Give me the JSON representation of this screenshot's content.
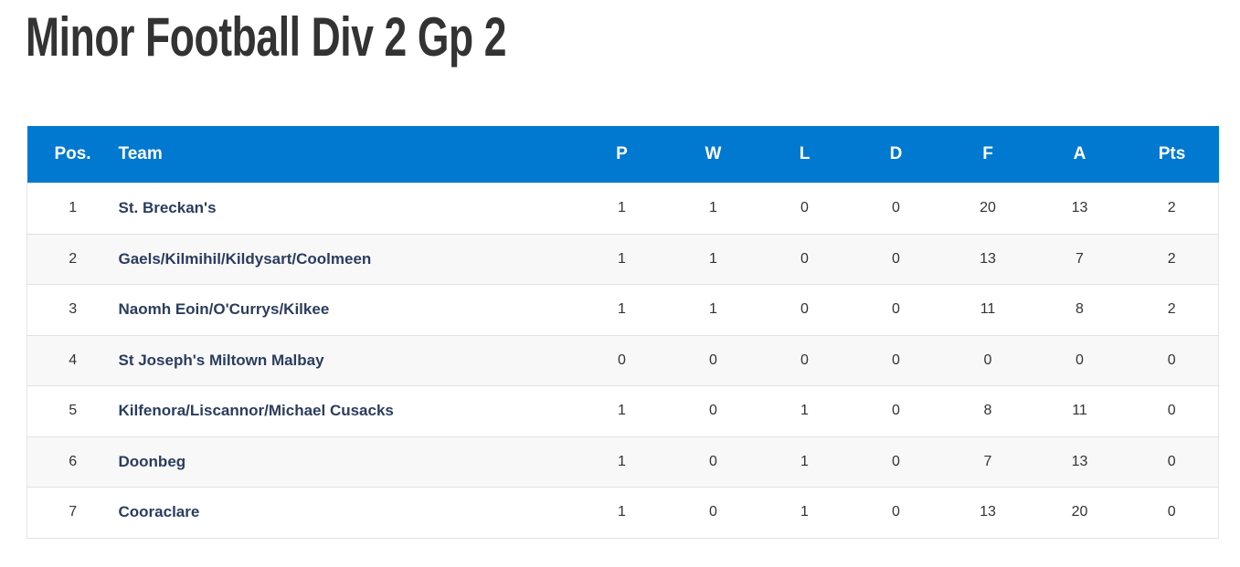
{
  "header": {
    "title": "Minor Football Div 2 Gp 2"
  },
  "table": {
    "columns": [
      "Pos.",
      "Team",
      "P",
      "W",
      "L",
      "D",
      "F",
      "A",
      "Pts"
    ],
    "rows": [
      [
        1,
        "St. Breckan's",
        1,
        1,
        0,
        0,
        20,
        13,
        2
      ],
      [
        2,
        "Gaels/Kilmihil/Kildysart/Coolmeen",
        1,
        1,
        0,
        0,
        13,
        7,
        2
      ],
      [
        3,
        "Naomh Eoin/O'Currys/Kilkee",
        1,
        1,
        0,
        0,
        11,
        8,
        2
      ],
      [
        4,
        "St Joseph's Miltown Malbay",
        0,
        0,
        0,
        0,
        0,
        0,
        0
      ],
      [
        5,
        "Kilfenora/Liscannor/Michael Cusacks",
        1,
        0,
        1,
        0,
        8,
        11,
        0
      ],
      [
        6,
        "Doonbeg",
        1,
        0,
        1,
        0,
        7,
        13,
        0
      ],
      [
        7,
        "Cooraclare",
        1,
        0,
        1,
        0,
        13,
        20,
        0
      ]
    ]
  }
}
